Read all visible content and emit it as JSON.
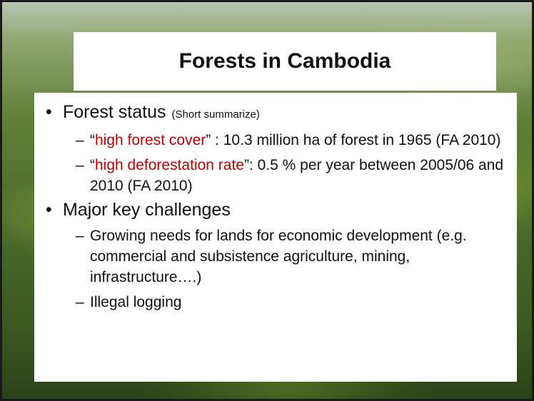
{
  "title": "Forests in Cambodia",
  "bullets": [
    {
      "text": "Forest status",
      "note": "(Short summarize)",
      "items": [
        {
          "open": "“",
          "highlight": "high forest cover",
          "rest": "” : 10.3 million ha of forest in 1965 (FA 2010)"
        },
        {
          "open": "“",
          "highlight": "high deforestation rate",
          "rest": "”: 0.5 % per year between 2005/06 and 2010 (FA 2010)"
        }
      ]
    },
    {
      "text": "Major key challenges",
      "items": [
        {
          "rest": "Growing needs for lands for economic development (e.g. commercial and subsistence agriculture, mining, infrastructure….)"
        },
        {
          "rest": "Illegal logging"
        }
      ]
    }
  ]
}
